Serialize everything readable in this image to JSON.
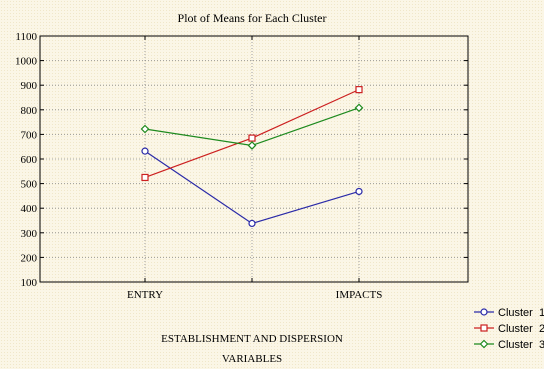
{
  "chart_data": {
    "type": "line",
    "title": "Plot of Means for Each Cluster",
    "xlabel_lines": [
      "ESTABLISHMENT AND DISPERSION",
      "VARIABLES"
    ],
    "categories": [
      "ENTRY",
      "ESTABLISHMENT AND DISPERSION",
      "IMPACTS"
    ],
    "tick_labels": [
      "ENTRY",
      "",
      "IMPACTS"
    ],
    "y_ticks": [
      100,
      200,
      300,
      400,
      500,
      600,
      700,
      800,
      900,
      1000,
      1100
    ],
    "ylim": [
      100,
      1100
    ],
    "grid": true,
    "legend_position": "bottom-right",
    "series": [
      {
        "name": "Cluster  1",
        "color": "#2a2aa8",
        "marker": "circle",
        "values": [
          632,
          338,
          468
        ]
      },
      {
        "name": "Cluster  2",
        "color": "#cc2020",
        "marker": "square",
        "values": [
          525,
          685,
          882
        ]
      },
      {
        "name": "Cluster  3",
        "color": "#1e8a1e",
        "marker": "diamond",
        "values": [
          722,
          655,
          808
        ]
      }
    ]
  }
}
